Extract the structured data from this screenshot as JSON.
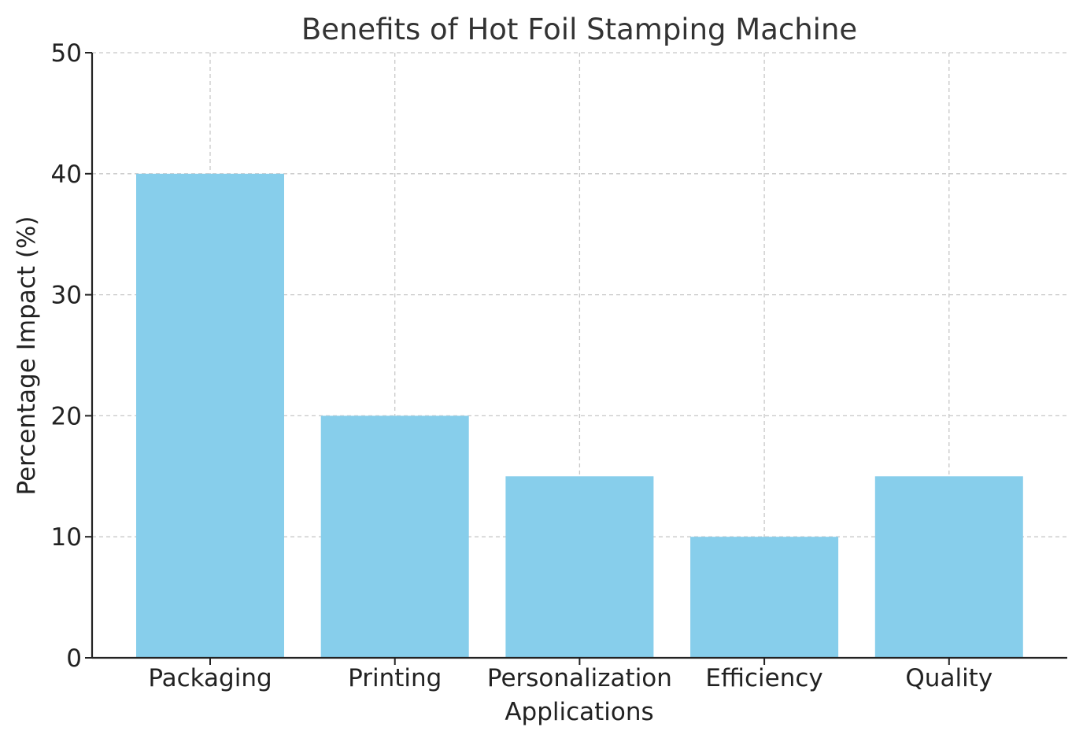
{
  "chart_data": {
    "type": "bar",
    "title": "Benefits of Hot Foil Stamping Machine",
    "xlabel": "Applications",
    "ylabel": "Percentage Impact (%)",
    "categories": [
      "Packaging",
      "Printing",
      "Personalization",
      "Efficiency",
      "Quality"
    ],
    "values": [
      40,
      20,
      15,
      10,
      15
    ],
    "ylim": [
      0,
      50
    ],
    "yticks": [
      0,
      10,
      20,
      30,
      40,
      50
    ],
    "grid": true,
    "bar_color": "#87CEEB"
  }
}
